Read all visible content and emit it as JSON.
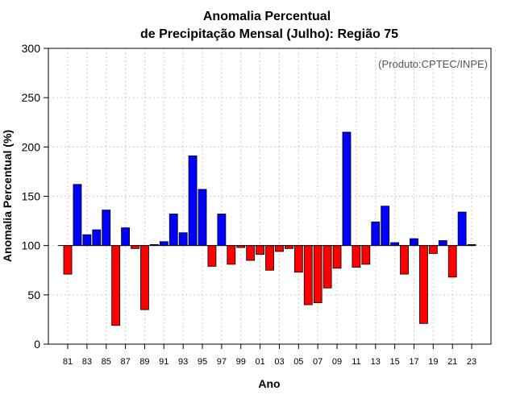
{
  "chart_data": {
    "type": "bar",
    "title": "Anomalia Percentual",
    "subtitle": "de Precipitação Mensal (Julho): Região 75",
    "xlabel": "Ano",
    "ylabel": "Anomalia Percentual (%)",
    "annotation": "(Produto:CPTEC/INPE)",
    "ylim": [
      0,
      300
    ],
    "yticks": [
      0,
      50,
      100,
      150,
      200,
      250,
      300
    ],
    "baseline": 100,
    "grid": true,
    "colors": {
      "above": "#0000ff",
      "below": "#ff0000",
      "outline": "#000000",
      "grid": "#cccccc"
    },
    "categories": [
      "1981",
      "1982",
      "1983",
      "1984",
      "1985",
      "1986",
      "1987",
      "1988",
      "1989",
      "1990",
      "1991",
      "1992",
      "1993",
      "1994",
      "1995",
      "1996",
      "1997",
      "1998",
      "1999",
      "2000",
      "2001",
      "2002",
      "2003",
      "2004",
      "2005",
      "2006",
      "2007",
      "2008",
      "2009",
      "2010",
      "2011",
      "2012",
      "2013",
      "2014",
      "2015",
      "2016",
      "2017",
      "2018",
      "2019",
      "2020",
      "2021",
      "2022",
      "2023"
    ],
    "xtick_labels": [
      "81",
      "83",
      "85",
      "87",
      "89",
      "91",
      "93",
      "95",
      "97",
      "99",
      "01",
      "03",
      "05",
      "07",
      "09",
      "11",
      "13",
      "15",
      "17",
      "19",
      "21",
      "23"
    ],
    "values": [
      71,
      162,
      111,
      116,
      136,
      19,
      118,
      97,
      35,
      101,
      104,
      132,
      113,
      191,
      157,
      79,
      132,
      81,
      98,
      85,
      91,
      75,
      94,
      97,
      73,
      40,
      42,
      57,
      77,
      215,
      78,
      81,
      124,
      140,
      103,
      71,
      107,
      21,
      92,
      105,
      68,
      134,
      101
    ]
  }
}
